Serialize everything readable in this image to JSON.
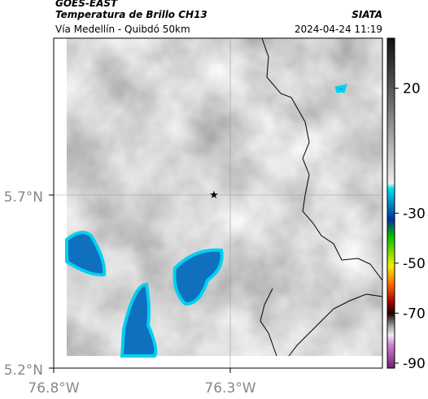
{
  "header": {
    "source": "GOES-EAST",
    "product": "Temperatura de Brillo CH13",
    "route": "Vía Medellín - Quibdó 50km",
    "agency": "SIATA",
    "datetime": "2024-04-24 11:19"
  },
  "map": {
    "lat_labels": [
      "5.7°N",
      "5.2°N"
    ],
    "lon_labels": [
      "76.8°W",
      "76.3°W"
    ]
  },
  "colorbar": {
    "lim": [
      -92,
      40
    ],
    "ticks": [
      20,
      -30,
      -50,
      -70,
      -90
    ]
  }
}
